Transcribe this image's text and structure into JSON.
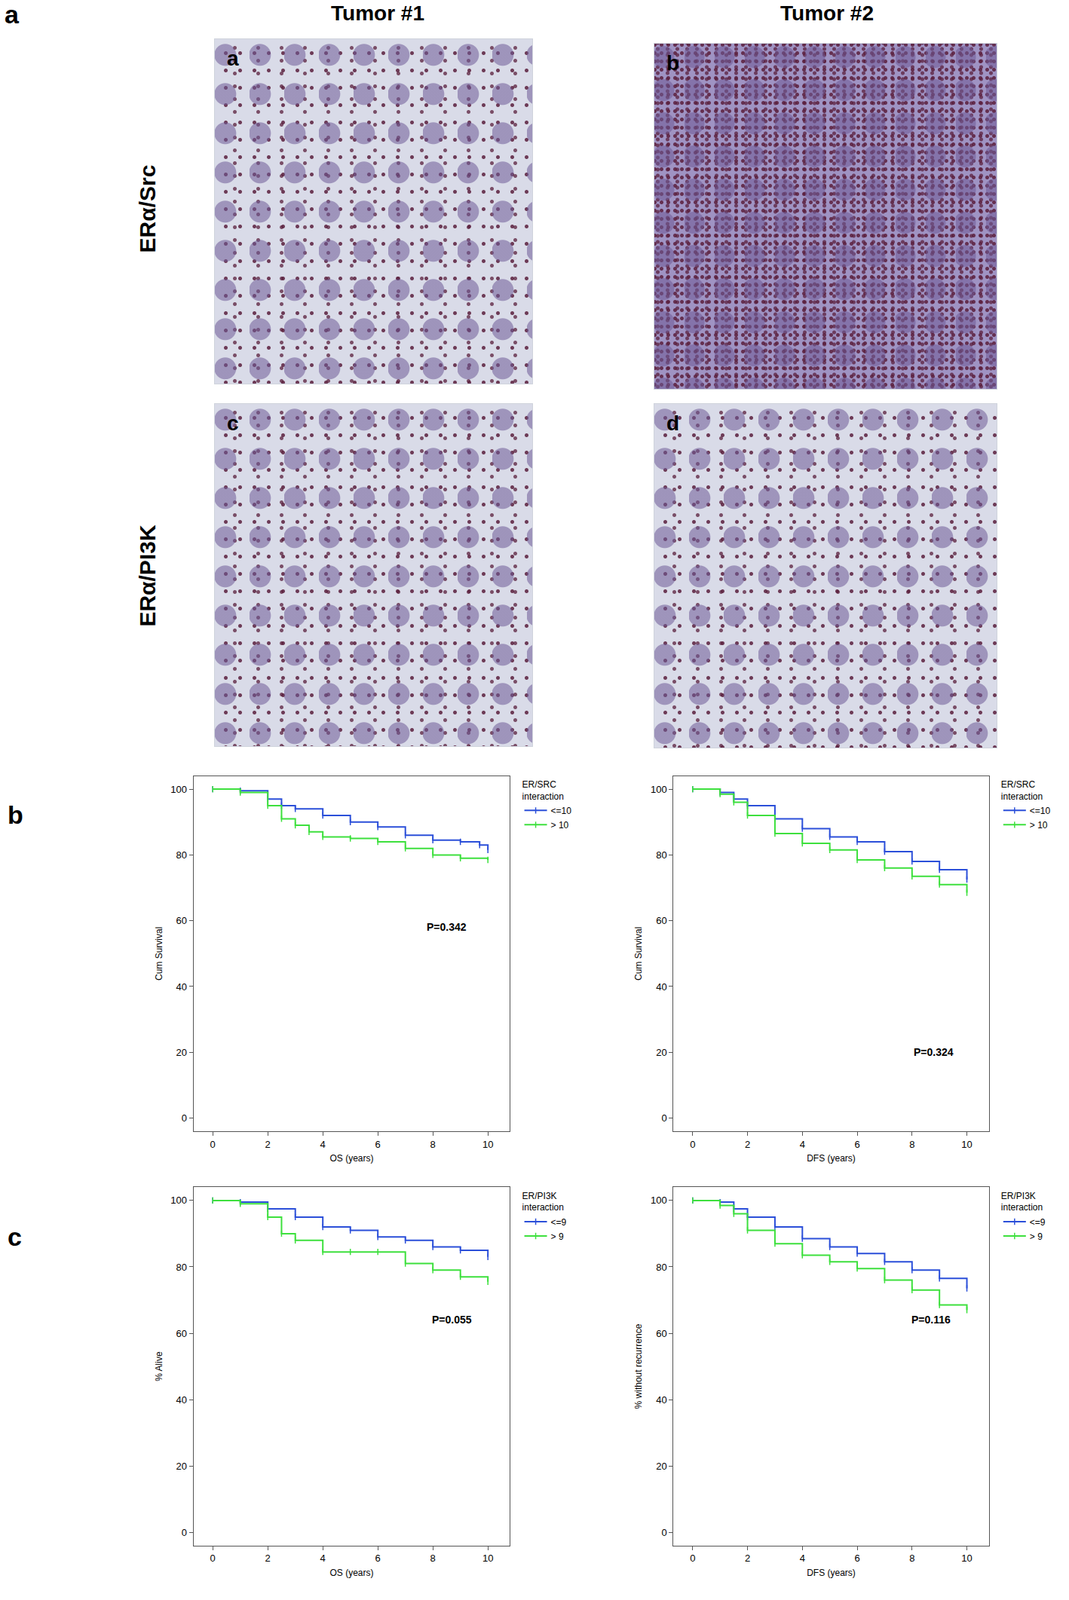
{
  "panel_labels": [
    "a",
    "b",
    "c"
  ],
  "images": {
    "columns": [
      "Tumor #1",
      "Tumor #2"
    ],
    "rows": [
      "ERα/Src",
      "ERα/PI3K"
    ],
    "labels": [
      "a",
      "b",
      "c",
      "d"
    ]
  },
  "chart_data": [
    {
      "type": "line",
      "line_style": "step",
      "marker": "line-ns",
      "legend": "right",
      "x_label": "OS (years)",
      "y_label": "Cum Survival",
      "legend_title": [
        "ER/SRC",
        "interaction"
      ],
      "xlim": [
        -0.7,
        10.8
      ],
      "xticks": [
        0,
        2,
        4,
        6,
        8,
        10
      ],
      "ylim": [
        -4,
        104
      ],
      "yticks": [
        0,
        20,
        40,
        60,
        80,
        100
      ],
      "annotations": [
        {
          "text": "P=0.342",
          "x": 8.5,
          "y": 58
        }
      ],
      "series": [
        {
          "name": "<=10",
          "color": "#2b4fd9",
          "x": [
            0,
            1,
            2,
            2.5,
            3,
            4,
            5,
            6,
            7,
            8,
            9,
            9.7,
            10
          ],
          "values": [
            100,
            99.5,
            97,
            95,
            94,
            92,
            90,
            88.5,
            86,
            84.5,
            84,
            83,
            81.5
          ]
        },
        {
          "name": "> 10",
          "color": "#3de03d",
          "x": [
            0,
            1,
            2,
            2.5,
            3,
            3.5,
            4,
            5,
            6,
            7,
            8,
            9,
            10
          ],
          "values": [
            100,
            99,
            95,
            91,
            89,
            87,
            85.5,
            85,
            84,
            82,
            80,
            79,
            78.5
          ]
        }
      ]
    },
    {
      "type": "line",
      "line_style": "step",
      "marker": "line-ns",
      "legend": "right",
      "x_label": "DFS (years)",
      "y_label": "Cum Survival",
      "legend_title": [
        "ER/SRC",
        "interaction"
      ],
      "xlim": [
        -0.7,
        10.8
      ],
      "xticks": [
        0,
        2,
        4,
        6,
        8,
        10
      ],
      "ylim": [
        -4,
        104
      ],
      "yticks": [
        0,
        20,
        40,
        60,
        80,
        100
      ],
      "annotations": [
        {
          "text": "P=0.324",
          "x": 8.8,
          "y": 20
        }
      ],
      "series": [
        {
          "name": "<=10",
          "color": "#2b4fd9",
          "x": [
            0,
            1,
            1.5,
            2,
            3,
            4,
            5,
            6,
            7,
            8,
            9,
            10
          ],
          "values": [
            100,
            99,
            97,
            95,
            91,
            88,
            85.5,
            84,
            81,
            78,
            75.5,
            72.5
          ]
        },
        {
          "name": "> 10",
          "color": "#3de03d",
          "x": [
            0,
            1,
            1.5,
            2,
            3,
            4,
            5,
            6,
            7,
            8,
            9,
            10
          ],
          "values": [
            100,
            98.5,
            96,
            92,
            86.5,
            83.5,
            81.5,
            78.5,
            76,
            73.5,
            71,
            68.5
          ]
        }
      ]
    },
    {
      "type": "line",
      "line_style": "step",
      "marker": "line-ns",
      "legend": "right",
      "x_label": "OS (years)",
      "y_label": "% Alive",
      "legend_title": [
        "ER/PI3K",
        "interaction"
      ],
      "xlim": [
        -0.7,
        10.8
      ],
      "xticks": [
        0,
        2,
        4,
        6,
        8,
        10
      ],
      "ylim": [
        -4,
        104
      ],
      "yticks": [
        0,
        20,
        40,
        60,
        80,
        100
      ],
      "annotations": [
        {
          "text": "P=0.055",
          "x": 8.7,
          "y": 64
        }
      ],
      "series": [
        {
          "name": "<=9",
          "color": "#2b4fd9",
          "x": [
            0,
            1,
            2,
            3,
            4,
            5,
            6,
            7,
            8,
            9,
            10
          ],
          "values": [
            100,
            99.5,
            97.5,
            95,
            92,
            91,
            89,
            88,
            86,
            85,
            83
          ]
        },
        {
          "name": "> 9",
          "color": "#3de03d",
          "x": [
            0,
            1,
            2,
            2.5,
            3,
            4,
            5,
            6,
            7,
            8,
            9,
            10
          ],
          "values": [
            100,
            99,
            95,
            90,
            88,
            84.5,
            84.5,
            84.5,
            81,
            79,
            77,
            75.5
          ]
        }
      ]
    },
    {
      "type": "line",
      "line_style": "step",
      "marker": "line-ns",
      "legend": "right",
      "x_label": "DFS (years)",
      "y_label": "% without recurrence",
      "legend_title": [
        "ER/PI3K",
        "interaction"
      ],
      "xlim": [
        -0.7,
        10.8
      ],
      "xticks": [
        0,
        2,
        4,
        6,
        8,
        10
      ],
      "ylim": [
        -4,
        104
      ],
      "yticks": [
        0,
        20,
        40,
        60,
        80,
        100
      ],
      "annotations": [
        {
          "text": "P=0.116",
          "x": 8.7,
          "y": 64
        }
      ],
      "series": [
        {
          "name": "<=9",
          "color": "#2b4fd9",
          "x": [
            0,
            1,
            1.5,
            2,
            3,
            4,
            5,
            6,
            7,
            8,
            9,
            10
          ],
          "values": [
            100,
            99.5,
            97.5,
            95,
            92,
            88.5,
            86,
            84,
            81.5,
            79,
            76.5,
            73.5
          ]
        },
        {
          "name": "> 9",
          "color": "#3de03d",
          "x": [
            0,
            1,
            1.5,
            2,
            3,
            4,
            5,
            6,
            7,
            8,
            9,
            10
          ],
          "values": [
            100,
            98.5,
            96,
            91,
            87,
            83.5,
            81.5,
            79.5,
            76,
            73,
            68.5,
            67
          ]
        }
      ]
    }
  ]
}
